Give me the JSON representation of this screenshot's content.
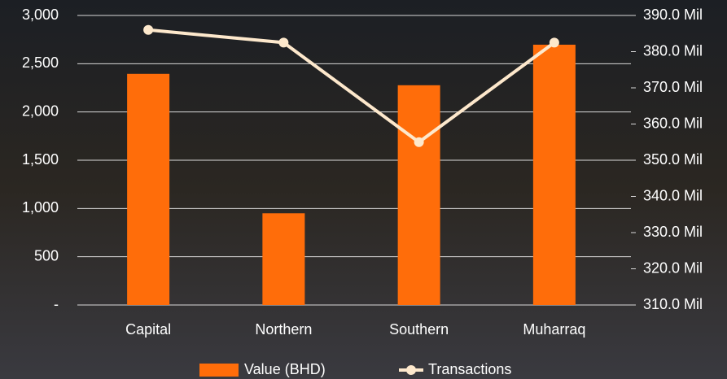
{
  "chart_data": {
    "type": "bar-line",
    "categories": [
      "Capital",
      "Northern",
      "Southern",
      "Muharraq"
    ],
    "series": [
      {
        "name": "Value (BHD)",
        "type": "bar",
        "color": "#ff6d0a",
        "values": [
          2395,
          950,
          2277,
          2697
        ]
      },
      {
        "name": "Transactions",
        "type": "line",
        "axis": "y2",
        "color": "#fde8cc",
        "values": [
          386,
          382.5,
          355,
          382.5
        ]
      }
    ],
    "ylim": [
      0,
      3000
    ],
    "yticks": [
      {
        "value": 0,
        "label": "-"
      },
      500,
      {
        "value": 1000,
        "label": "1,000"
      },
      {
        "value": 1500,
        "label": "1,500"
      },
      {
        "value": 2000,
        "label": "2,000"
      },
      {
        "value": 2500,
        "label": "2,500"
      },
      {
        "value": 3000,
        "label": "3,000"
      }
    ],
    "y2lim": [
      310,
      390
    ],
    "y2ticks": [
      {
        "value": 310,
        "label": "310.0 Mil"
      },
      {
        "value": 320,
        "label": "320.0 Mil"
      },
      {
        "value": 330,
        "label": "330.0 Mil"
      },
      {
        "value": 340,
        "label": "340.0 Mil"
      },
      {
        "value": 350,
        "label": "350.0 Mil"
      },
      {
        "value": 360,
        "label": "360.0 Mil"
      },
      {
        "value": 370,
        "label": "370.0 Mil"
      },
      {
        "value": 380,
        "label": "380.0 Mil"
      },
      {
        "value": 390,
        "label": "390.0 Mil"
      }
    ],
    "grid": true,
    "legend": "bottom"
  }
}
